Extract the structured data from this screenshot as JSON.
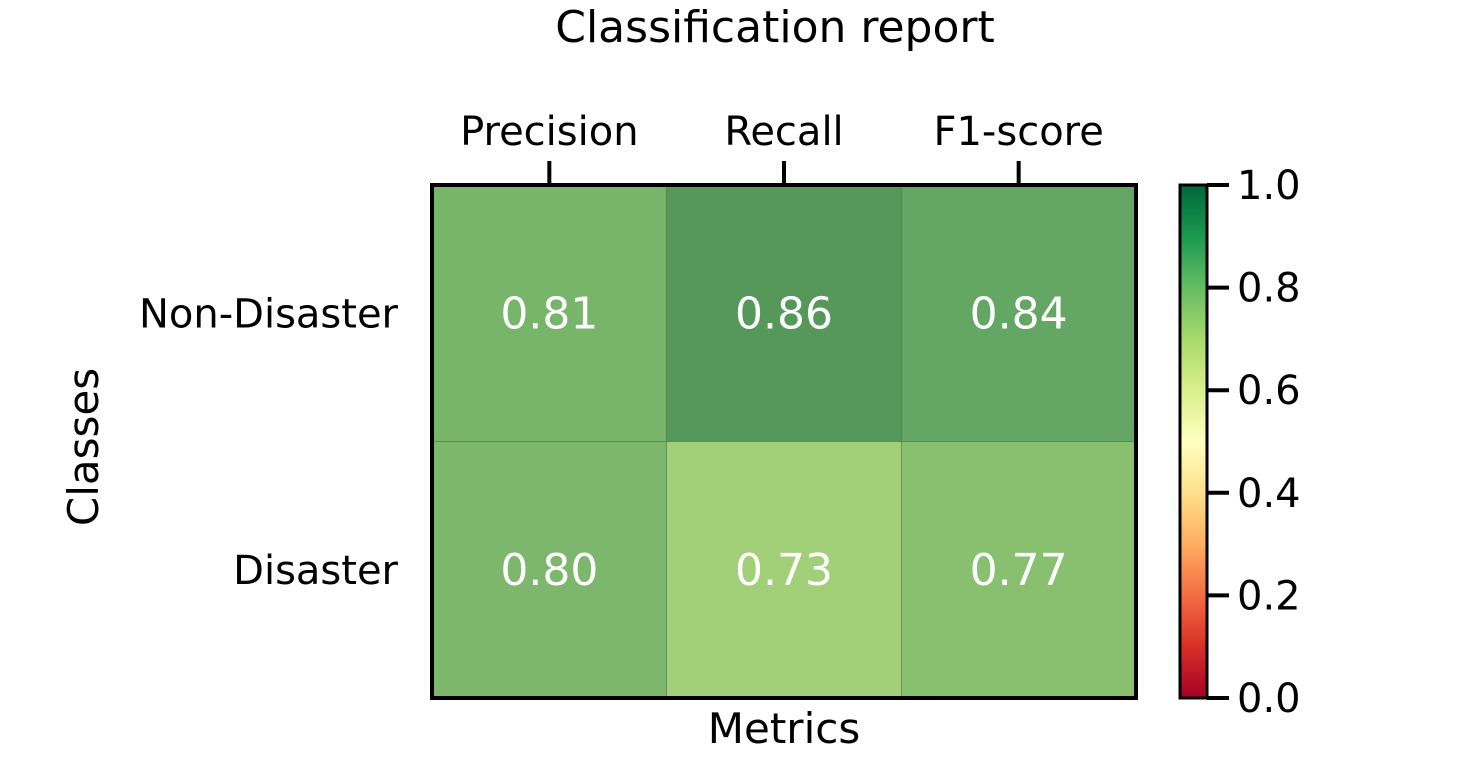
{
  "chart_data": {
    "type": "heatmap",
    "title": "Classification report",
    "xlabel": "Metrics",
    "ylabel": "Classes",
    "x_categories": [
      "Precision",
      "Recall",
      "F1-score"
    ],
    "y_categories": [
      "Non-Disaster",
      "Disaster"
    ],
    "values": [
      [
        0.81,
        0.86,
        0.84
      ],
      [
        0.8,
        0.73,
        0.77
      ]
    ],
    "value_labels": [
      [
        "0.81",
        "0.86",
        "0.84"
      ],
      [
        "0.80",
        "0.73",
        "0.77"
      ]
    ],
    "colorbar": {
      "vmin": 0.0,
      "vmax": 1.0,
      "ticks": [
        0.0,
        0.2,
        0.4,
        0.6,
        0.8,
        1.0
      ],
      "tick_labels": [
        "0.0",
        "0.2",
        "0.4",
        "0.6",
        "0.8",
        "1.0"
      ],
      "colormap": "RdYlGn"
    },
    "x_axis_position": "top",
    "grid": false
  },
  "colors": {
    "cells": [
      [
        "#77b56a",
        "#55985a",
        "#64a765"
      ],
      [
        "#7cb76d",
        "#a2d078",
        "#88c070"
      ]
    ],
    "colormap_stops": [
      {
        "offset": 0.0,
        "color": "#a50026"
      },
      {
        "offset": 0.1,
        "color": "#d73027"
      },
      {
        "offset": 0.2,
        "color": "#f46d43"
      },
      {
        "offset": 0.3,
        "color": "#fdae61"
      },
      {
        "offset": 0.4,
        "color": "#fee08b"
      },
      {
        "offset": 0.5,
        "color": "#ffffbf"
      },
      {
        "offset": 0.6,
        "color": "#d9ef8b"
      },
      {
        "offset": 0.7,
        "color": "#a6d96a"
      },
      {
        "offset": 0.8,
        "color": "#66bd63"
      },
      {
        "offset": 0.9,
        "color": "#1a9850"
      },
      {
        "offset": 1.0,
        "color": "#006837"
      }
    ]
  }
}
